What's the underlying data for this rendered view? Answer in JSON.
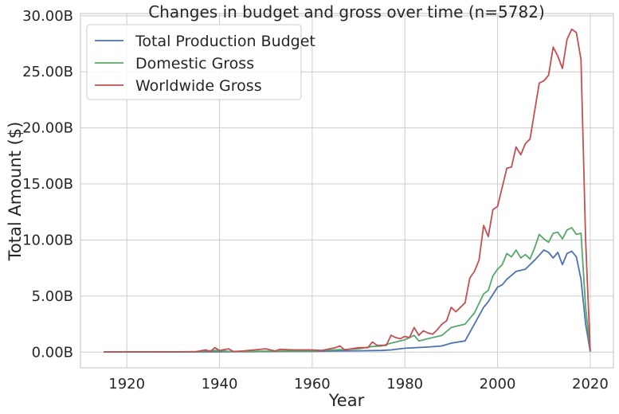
{
  "chart_data": {
    "type": "line",
    "title": "Changes in budget and gross over time (n=5782)",
    "xlabel": "Year",
    "ylabel": "Total Amount ($)",
    "xlim": [
      1910,
      2025
    ],
    "ylim": [
      -1.4,
      30.2
    ],
    "x_ticks": [
      1920,
      1940,
      1960,
      1980,
      2000,
      2020
    ],
    "y_ticks": [
      0,
      5,
      10,
      15,
      20,
      25,
      30
    ],
    "y_tick_labels": [
      "0.00B",
      "5.00B",
      "10.00B",
      "15.00B",
      "20.00B",
      "25.00B",
      "30.00B"
    ],
    "grid": true,
    "legend_position": "top-left",
    "series": [
      {
        "name": "Total Production Budget",
        "color": "#4c72b0",
        "points": [
          [
            1915,
            0.01
          ],
          [
            1920,
            0.01
          ],
          [
            1925,
            0.02
          ],
          [
            1930,
            0.01
          ],
          [
            1935,
            0.02
          ],
          [
            1940,
            0.03
          ],
          [
            1945,
            0.04
          ],
          [
            1950,
            0.05
          ],
          [
            1955,
            0.06
          ],
          [
            1960,
            0.07
          ],
          [
            1965,
            0.1
          ],
          [
            1970,
            0.12
          ],
          [
            1975,
            0.15
          ],
          [
            1977,
            0.2
          ],
          [
            1980,
            0.35
          ],
          [
            1985,
            0.45
          ],
          [
            1988,
            0.55
          ],
          [
            1990,
            0.8
          ],
          [
            1993,
            1.0
          ],
          [
            1995,
            2.5
          ],
          [
            1997,
            4.0
          ],
          [
            1998,
            4.5
          ],
          [
            2000,
            5.8
          ],
          [
            2001,
            6.0
          ],
          [
            2002,
            6.5
          ],
          [
            2004,
            7.2
          ],
          [
            2006,
            7.4
          ],
          [
            2008,
            8.2
          ],
          [
            2010,
            9.1
          ],
          [
            2011,
            8.9
          ],
          [
            2012,
            8.4
          ],
          [
            2013,
            8.9
          ],
          [
            2014,
            7.8
          ],
          [
            2015,
            8.8
          ],
          [
            2016,
            9.0
          ],
          [
            2017,
            8.5
          ],
          [
            2018,
            6.5
          ],
          [
            2019,
            2.5
          ],
          [
            2020,
            0.05
          ]
        ]
      },
      {
        "name": "Domestic Gross",
        "color": "#55a868",
        "points": [
          [
            1915,
            0.02
          ],
          [
            1920,
            0.02
          ],
          [
            1925,
            0.03
          ],
          [
            1930,
            0.02
          ],
          [
            1935,
            0.03
          ],
          [
            1937,
            0.1
          ],
          [
            1939,
            0.15
          ],
          [
            1942,
            0.06
          ],
          [
            1945,
            0.07
          ],
          [
            1950,
            0.08
          ],
          [
            1955,
            0.1
          ],
          [
            1960,
            0.1
          ],
          [
            1965,
            0.2
          ],
          [
            1970,
            0.3
          ],
          [
            1973,
            0.5
          ],
          [
            1975,
            0.55
          ],
          [
            1977,
            0.8
          ],
          [
            1980,
            1.1
          ],
          [
            1982,
            1.5
          ],
          [
            1983,
            1.0
          ],
          [
            1985,
            1.2
          ],
          [
            1988,
            1.5
          ],
          [
            1990,
            2.2
          ],
          [
            1993,
            2.5
          ],
          [
            1995,
            3.5
          ],
          [
            1997,
            5.2
          ],
          [
            1998,
            5.5
          ],
          [
            1999,
            6.8
          ],
          [
            2000,
            7.4
          ],
          [
            2001,
            7.8
          ],
          [
            2002,
            8.8
          ],
          [
            2003,
            8.5
          ],
          [
            2004,
            9.1
          ],
          [
            2005,
            8.4
          ],
          [
            2006,
            8.7
          ],
          [
            2007,
            8.3
          ],
          [
            2008,
            9.3
          ],
          [
            2009,
            10.5
          ],
          [
            2010,
            10.1
          ],
          [
            2011,
            9.8
          ],
          [
            2012,
            10.6
          ],
          [
            2013,
            10.7
          ],
          [
            2014,
            10.1
          ],
          [
            2015,
            10.9
          ],
          [
            2016,
            11.1
          ],
          [
            2017,
            10.5
          ],
          [
            2018,
            10.6
          ],
          [
            2019,
            4.0
          ],
          [
            2020,
            0.1
          ]
        ]
      },
      {
        "name": "Worldwide Gross",
        "color": "#c44e52",
        "points": [
          [
            1915,
            0.02
          ],
          [
            1920,
            0.02
          ],
          [
            1925,
            0.03
          ],
          [
            1930,
            0.02
          ],
          [
            1935,
            0.05
          ],
          [
            1937,
            0.2
          ],
          [
            1938,
            0.05
          ],
          [
            1939,
            0.4
          ],
          [
            1940,
            0.15
          ],
          [
            1942,
            0.3
          ],
          [
            1943,
            0.05
          ],
          [
            1945,
            0.1
          ],
          [
            1950,
            0.3
          ],
          [
            1952,
            0.1
          ],
          [
            1953,
            0.25
          ],
          [
            1956,
            0.2
          ],
          [
            1960,
            0.2
          ],
          [
            1962,
            0.15
          ],
          [
            1965,
            0.4
          ],
          [
            1966,
            0.55
          ],
          [
            1967,
            0.2
          ],
          [
            1970,
            0.4
          ],
          [
            1972,
            0.4
          ],
          [
            1973,
            0.9
          ],
          [
            1974,
            0.6
          ],
          [
            1976,
            0.6
          ],
          [
            1977,
            1.5
          ],
          [
            1978,
            1.3
          ],
          [
            1979,
            1.2
          ],
          [
            1980,
            1.4
          ],
          [
            1981,
            1.3
          ],
          [
            1982,
            2.2
          ],
          [
            1983,
            1.5
          ],
          [
            1984,
            1.9
          ],
          [
            1985,
            1.7
          ],
          [
            1986,
            1.6
          ],
          [
            1987,
            2.0
          ],
          [
            1988,
            2.5
          ],
          [
            1989,
            2.8
          ],
          [
            1990,
            4.0
          ],
          [
            1991,
            3.6
          ],
          [
            1993,
            4.4
          ],
          [
            1994,
            6.6
          ],
          [
            1995,
            7.2
          ],
          [
            1996,
            8.2
          ],
          [
            1997,
            11.3
          ],
          [
            1998,
            10.3
          ],
          [
            1999,
            12.7
          ],
          [
            2000,
            13.0
          ],
          [
            2001,
            14.7
          ],
          [
            2002,
            16.4
          ],
          [
            2003,
            16.5
          ],
          [
            2004,
            18.3
          ],
          [
            2005,
            17.6
          ],
          [
            2006,
            18.6
          ],
          [
            2007,
            19.0
          ],
          [
            2008,
            21.5
          ],
          [
            2009,
            24.0
          ],
          [
            2010,
            24.2
          ],
          [
            2011,
            24.7
          ],
          [
            2012,
            27.2
          ],
          [
            2013,
            26.4
          ],
          [
            2014,
            25.3
          ],
          [
            2015,
            27.9
          ],
          [
            2016,
            28.8
          ],
          [
            2017,
            28.5
          ],
          [
            2018,
            26.1
          ],
          [
            2019,
            10.0
          ],
          [
            2020,
            0.1
          ]
        ]
      }
    ]
  }
}
